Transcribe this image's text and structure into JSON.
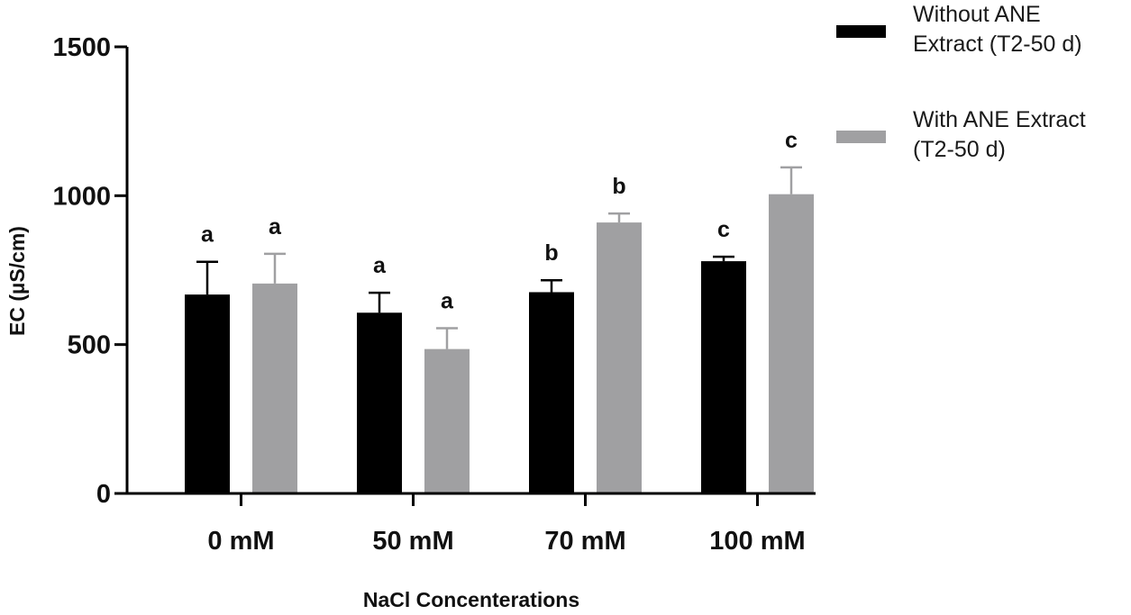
{
  "chart_data": {
    "type": "bar",
    "title": "",
    "xlabel": "NaCl Concenterations",
    "ylabel": "EC (µS/cm)",
    "ylim": [
      0,
      1500
    ],
    "yticks": [
      0,
      500,
      1000,
      1500
    ],
    "yticks_labels": [
      "0",
      "500",
      "1000",
      "1500"
    ],
    "categories": [
      "0 mM",
      "50 mM",
      "70 mM",
      "100 mM"
    ],
    "series": [
      {
        "name": "Without ANE Extract (T2-50 d)",
        "color": "#000000",
        "values": [
          668,
          607,
          676,
          780
        ],
        "errors": [
          110,
          67,
          40,
          15
        ],
        "letters": [
          "a",
          "a",
          "b",
          "c"
        ]
      },
      {
        "name": "With ANE Extract (T2-50 d)",
        "color": "#a0a0a2",
        "values": [
          705,
          485,
          910,
          1005
        ],
        "errors": [
          100,
          70,
          30,
          90
        ],
        "letters": [
          "a",
          "a",
          "b",
          "c"
        ]
      }
    ],
    "legend": {
      "position": "top-right",
      "entries": [
        {
          "line1": "Without ANE",
          "line2": "Extract (T2-50 d)"
        },
        {
          "line1": "With ANE Extract",
          "line2": "(T2-50 d)"
        }
      ]
    }
  }
}
